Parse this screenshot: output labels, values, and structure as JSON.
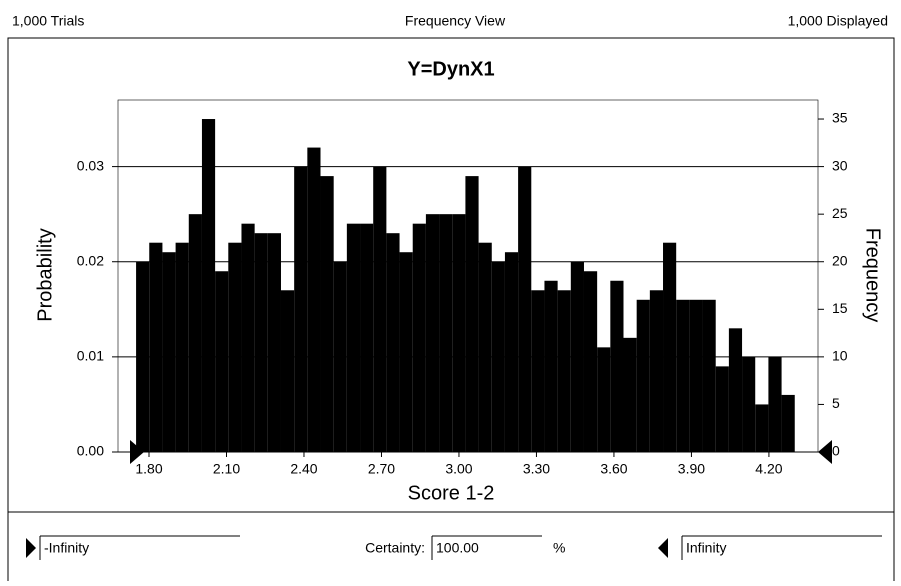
{
  "header": {
    "left": "1,000 Trials",
    "center": "Frequency View",
    "right": "1,000 Displayed"
  },
  "chart_data": {
    "type": "histogram",
    "title": "Y=DynX1",
    "x_label": "Score 1-2",
    "y_label": "Probability",
    "y2_label": "Frequency",
    "bins": [
      1.75,
      1.801,
      1.852,
      1.903,
      1.954,
      2.005,
      2.056,
      2.107,
      2.158,
      2.209,
      2.26,
      2.311,
      2.362,
      2.413,
      2.464,
      2.515,
      2.566,
      2.617,
      2.668,
      2.719,
      2.77,
      2.821,
      2.872,
      2.923,
      2.974,
      3.025,
      3.076,
      3.127,
      3.178,
      3.229,
      3.28,
      3.331,
      3.382,
      3.433,
      3.484,
      3.535,
      3.586,
      3.637,
      3.688,
      3.739,
      3.79,
      3.841,
      3.892,
      3.943,
      3.994,
      4.045,
      4.096,
      4.147,
      4.198,
      4.249,
      4.3
    ],
    "series": [
      {
        "color": "#000000",
        "axis": "y2",
        "values": [
          20,
          22,
          21,
          22,
          25,
          35,
          19,
          22,
          24,
          23,
          23,
          17,
          30,
          32,
          29,
          20,
          24,
          24,
          30,
          23,
          21,
          24,
          25,
          25,
          25,
          29,
          22,
          20,
          21,
          30,
          17,
          18,
          17,
          20,
          19,
          11,
          18,
          12,
          16,
          17,
          22,
          16,
          16,
          16,
          9,
          13,
          10,
          5,
          10,
          6
        ]
      }
    ],
    "xlim": [
      1.68,
      4.39
    ],
    "xticks": [
      {
        "value": 1.8,
        "label": "1.80"
      },
      {
        "value": 2.1,
        "label": "2.10"
      },
      {
        "value": 2.4,
        "label": "2.40"
      },
      {
        "value": 2.7,
        "label": "2.70"
      },
      {
        "value": 3.0,
        "label": "3.00"
      },
      {
        "value": 3.3,
        "label": "3.30"
      },
      {
        "value": 3.6,
        "label": "3.60"
      },
      {
        "value": 3.9,
        "label": "3.90"
      },
      {
        "value": 4.2,
        "label": "4.20"
      }
    ],
    "ylim": [
      0,
      0.037
    ],
    "yticks": [
      {
        "value": 0,
        "label": "0.00"
      },
      0.01,
      0.02,
      0.03
    ],
    "y2lim": [
      0,
      37
    ],
    "y2ticks": [
      0,
      5,
      10,
      15,
      20,
      25,
      30,
      35
    ],
    "grid": true
  },
  "controls": {
    "left_value": "-Infinity",
    "certainty_label": "Certainty:",
    "certainty_value": "100.00",
    "certainty_unit": "%",
    "right_value": "Infinity"
  }
}
